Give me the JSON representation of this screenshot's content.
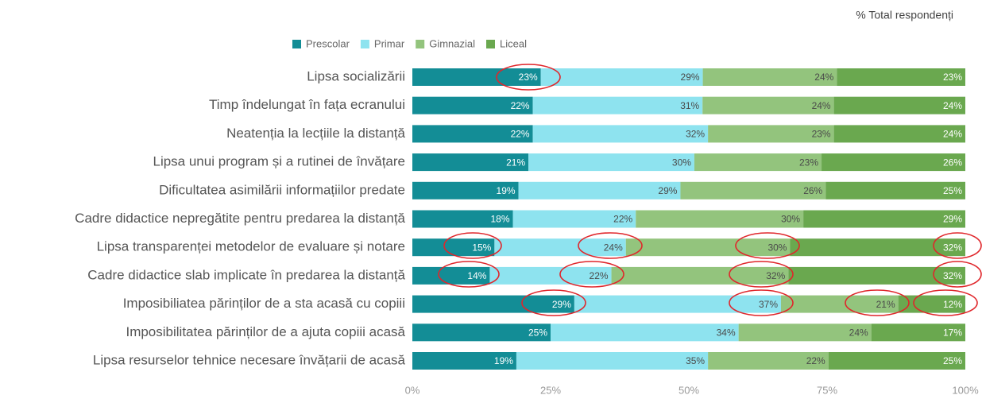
{
  "chart_data": {
    "type": "stacked_bar_horizontal",
    "stacking": "percent",
    "annotation": "% Total respondenți",
    "categories": [
      "Lipsa socializării",
      "Timp îndelungat în fața ecranului",
      "Neatenția la lecțiile la distanță",
      "Lipsa unui program și a rutinei de învățare",
      "Dificultatea asimilării informațiilor predate",
      "Cadre didactice nepregătite pentru predarea la distanță",
      "Lipsa transparenței metodelor de evaluare și notare",
      "Cadre didactice slab implicate în predarea la distanță",
      "Imposibiliatea părinților de a sta acasă cu copiii",
      "Imposibilitatea părinților de a ajuta copiii acasă",
      "Lipsa resurselor tehnice necesare învățarii de acasă"
    ],
    "series": [
      {
        "name": "Prescolar",
        "color": "#138d96",
        "values": [
          23,
          22,
          22,
          21,
          19,
          18,
          15,
          14,
          29,
          25,
          19
        ],
        "value_labels": [
          "23%",
          "22%",
          "22%",
          "21%",
          "19%",
          "18%",
          "15%",
          "14%",
          "29%",
          "25%",
          "19%"
        ]
      },
      {
        "name": "Primar",
        "color": "#8ee3ef",
        "values": [
          29,
          31,
          32,
          30,
          29,
          22,
          24,
          22,
          37,
          34,
          35
        ],
        "value_labels": [
          "29%",
          "31%",
          "32%",
          "30%",
          "29%",
          "22%",
          "24%",
          "22%",
          "37%",
          "34%",
          "35%"
        ]
      },
      {
        "name": "Gimnazial",
        "color": "#93c47d",
        "values": [
          24,
          24,
          23,
          23,
          26,
          30,
          30,
          32,
          21,
          24,
          22
        ],
        "value_labels": [
          "24%",
          "24%",
          "23%",
          "23%",
          "26%",
          "30%",
          "30%",
          "32%",
          "21%",
          "24%",
          "22%"
        ]
      },
      {
        "name": "Liceal",
        "color": "#6aa84f",
        "values": [
          23,
          24,
          24,
          26,
          25,
          29,
          32,
          32,
          12,
          17,
          25
        ],
        "value_labels": [
          "23%",
          "24%",
          "24%",
          "26%",
          "25%",
          "29%",
          "32%",
          "32%",
          "12%",
          "17%",
          "25%"
        ]
      }
    ],
    "xlim": [
      0,
      100
    ],
    "xticks": [
      {
        "value": 0,
        "label": "0%"
      },
      {
        "value": 25,
        "label": "25%"
      },
      {
        "value": 50,
        "label": "50%"
      },
      {
        "value": 75,
        "label": "75%"
      },
      {
        "value": 100,
        "label": "100%"
      }
    ],
    "legend": "top"
  }
}
